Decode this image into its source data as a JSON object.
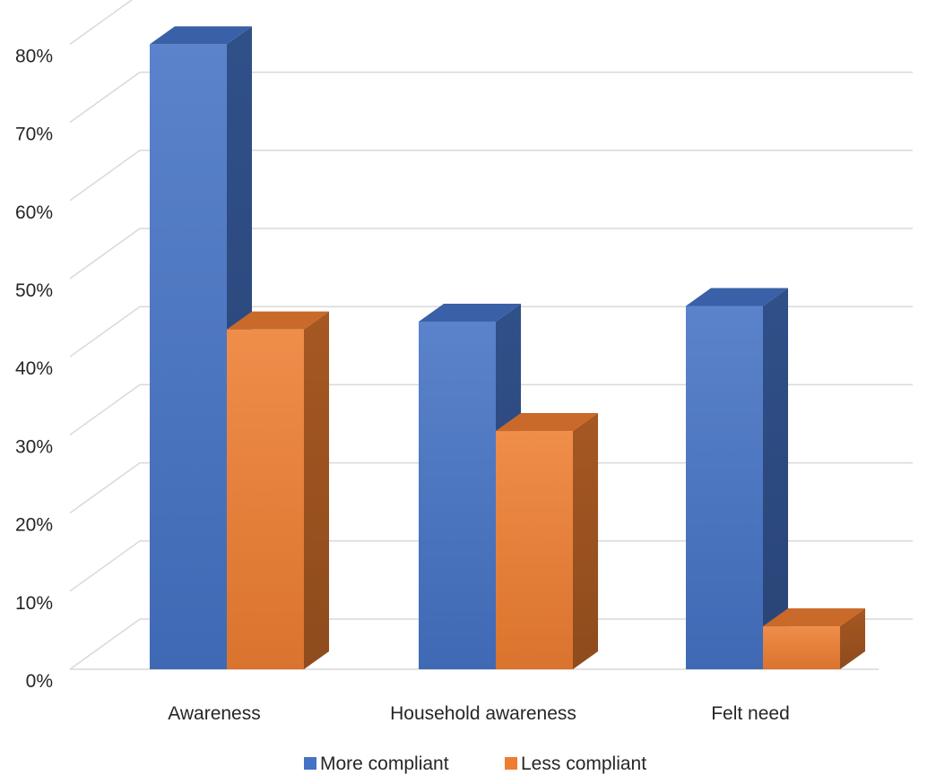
{
  "chart_data": {
    "type": "bar",
    "style": "3d-clustered-column",
    "categories": [
      "Awareness",
      "Household awareness",
      "Felt need"
    ],
    "series": [
      {
        "name": "More compliant",
        "values": [
          80,
          44.5,
          46.5
        ],
        "color": "#4472c4"
      },
      {
        "name": "Less compliant",
        "values": [
          43.5,
          30.5,
          5.5
        ],
        "color": "#ed7d31"
      }
    ],
    "y_ticks": [
      "0%",
      "10%",
      "20%",
      "30%",
      "40%",
      "50%",
      "60%",
      "70%",
      "80%"
    ],
    "ylim": [
      0,
      80
    ],
    "grid": true,
    "legend_position": "bottom"
  }
}
